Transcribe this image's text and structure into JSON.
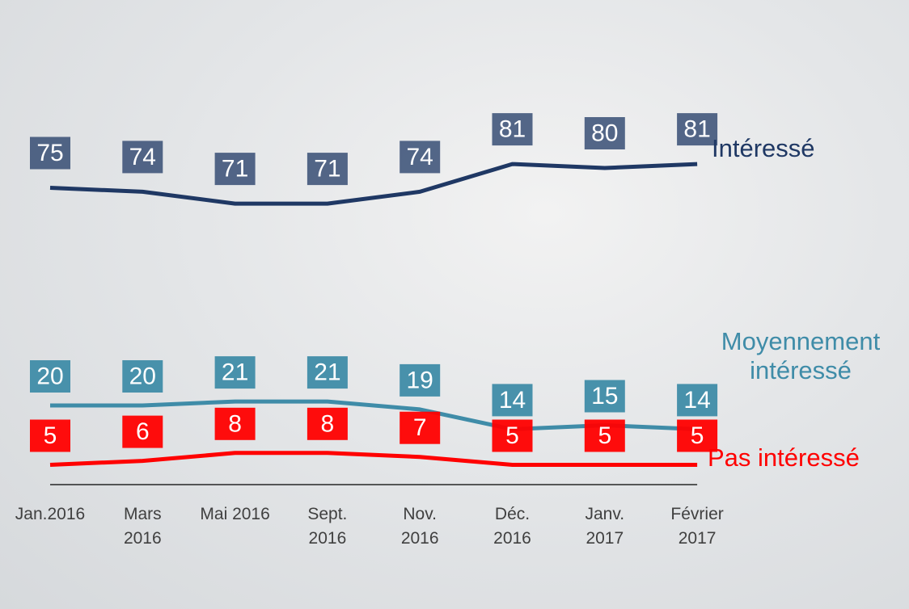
{
  "chart_data": {
    "type": "line",
    "categories": [
      "Jan.2016",
      "Mars\n2016",
      "Mai 2016",
      "Sept.\n2016",
      "Nov.\n2016",
      "Déc.\n2016",
      "Janv.\n2017",
      "Février\n2017"
    ],
    "series": [
      {
        "name": "Intéressé",
        "color": "#1f3864",
        "values": [
          75,
          74,
          71,
          71,
          74,
          81,
          80,
          81
        ]
      },
      {
        "name": "Moyennement intéressé",
        "color": "#3f8ca8",
        "values": [
          20,
          20,
          21,
          21,
          19,
          14,
          15,
          14
        ]
      },
      {
        "name": "Pas intéressé",
        "color": "#ff0000",
        "values": [
          5,
          6,
          8,
          8,
          7,
          5,
          5,
          5
        ]
      }
    ],
    "ylim": [
      0,
      100
    ]
  }
}
